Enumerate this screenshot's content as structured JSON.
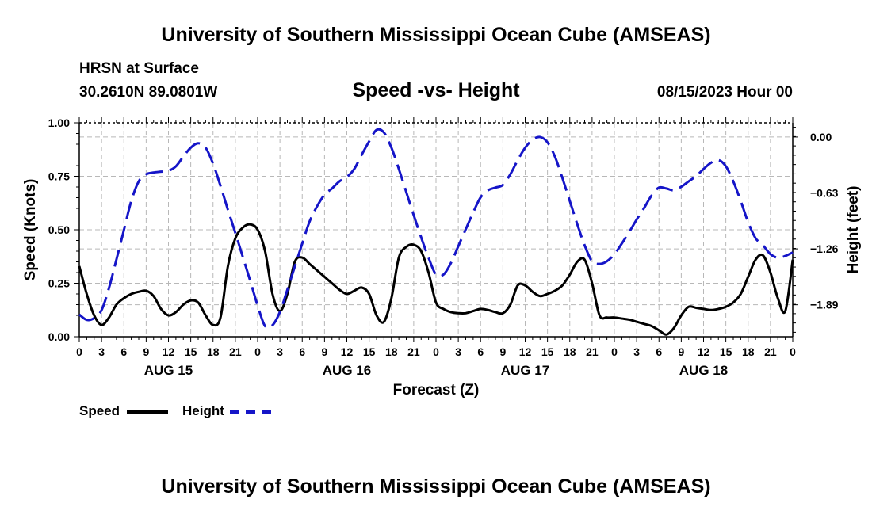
{
  "page": {
    "title_top": "University of Southern Mississippi Ocean Cube (AMSEAS)",
    "title_bottom": "University of Southern Mississippi Ocean Cube (AMSEAS)",
    "station": "HRSN at Surface",
    "coords": "30.2610N  89.0801W",
    "date": "08/15/2023 Hour 00"
  },
  "chart_data": {
    "type": "line",
    "title": "Speed -vs- Height",
    "xlabel": "Forecast (Z)",
    "ylabel": "Speed (Knots)",
    "ylabel_right": "Height (feet)",
    "x_range": [
      0,
      96
    ],
    "ylim": [
      0,
      1.0
    ],
    "ylim_right": [
      -2.25,
      0.16
    ],
    "y_ticks": [
      "0.00",
      "0.25",
      "0.50",
      "0.75",
      "1.00"
    ],
    "y_ticks_right": [
      "0.00",
      "−0.63",
      "−1.26",
      "−1.89"
    ],
    "y_ticks_right_values": [
      0.0,
      -0.63,
      -1.26,
      -1.89
    ],
    "x_tick_labels": [
      "0",
      "3",
      "6",
      "9",
      "12",
      "15",
      "18",
      "21",
      "0",
      "3",
      "6",
      "9",
      "12",
      "15",
      "18",
      "21",
      "0",
      "3",
      "6",
      "9",
      "12",
      "15",
      "18",
      "21",
      "0",
      "3",
      "6",
      "9",
      "12",
      "15",
      "18",
      "21",
      "0"
    ],
    "day_labels": [
      {
        "hour": 12,
        "label": "AUG 15"
      },
      {
        "hour": 36,
        "label": "AUG 16"
      },
      {
        "hour": 60,
        "label": "AUG 17"
      },
      {
        "hour": 84,
        "label": "AUG 18"
      }
    ],
    "grid": true,
    "legend": [
      "Speed",
      "Height"
    ],
    "series": [
      {
        "name": "Speed",
        "axis": "left",
        "color": "#000000",
        "dash": "solid",
        "points": [
          [
            0,
            0.33
          ],
          [
            1,
            0.2
          ],
          [
            2,
            0.1
          ],
          [
            3,
            0.055
          ],
          [
            4,
            0.09
          ],
          [
            5,
            0.15
          ],
          [
            6,
            0.18
          ],
          [
            7,
            0.2
          ],
          [
            8,
            0.21
          ],
          [
            9,
            0.215
          ],
          [
            10,
            0.19
          ],
          [
            11,
            0.13
          ],
          [
            12,
            0.1
          ],
          [
            13,
            0.115
          ],
          [
            14,
            0.15
          ],
          [
            15,
            0.17
          ],
          [
            16,
            0.16
          ],
          [
            17,
            0.1
          ],
          [
            18,
            0.055
          ],
          [
            19,
            0.09
          ],
          [
            20,
            0.33
          ],
          [
            21,
            0.46
          ],
          [
            22,
            0.51
          ],
          [
            23,
            0.525
          ],
          [
            24,
            0.5
          ],
          [
            25,
            0.4
          ],
          [
            26,
            0.2
          ],
          [
            27,
            0.12
          ],
          [
            28,
            0.2
          ],
          [
            29,
            0.35
          ],
          [
            30,
            0.37
          ],
          [
            31,
            0.34
          ],
          [
            32,
            0.31
          ],
          [
            33,
            0.28
          ],
          [
            34,
            0.25
          ],
          [
            35,
            0.22
          ],
          [
            36,
            0.2
          ],
          [
            37,
            0.215
          ],
          [
            38,
            0.23
          ],
          [
            39,
            0.2
          ],
          [
            40,
            0.1
          ],
          [
            41,
            0.07
          ],
          [
            42,
            0.18
          ],
          [
            43,
            0.37
          ],
          [
            44,
            0.42
          ],
          [
            45,
            0.43
          ],
          [
            46,
            0.4
          ],
          [
            47,
            0.3
          ],
          [
            48,
            0.16
          ],
          [
            49,
            0.13
          ],
          [
            50,
            0.115
          ],
          [
            51,
            0.11
          ],
          [
            52,
            0.11
          ],
          [
            53,
            0.12
          ],
          [
            54,
            0.13
          ],
          [
            55,
            0.125
          ],
          [
            56,
            0.115
          ],
          [
            57,
            0.11
          ],
          [
            58,
            0.15
          ],
          [
            59,
            0.24
          ],
          [
            60,
            0.24
          ],
          [
            61,
            0.21
          ],
          [
            62,
            0.19
          ],
          [
            63,
            0.2
          ],
          [
            64,
            0.215
          ],
          [
            65,
            0.24
          ],
          [
            66,
            0.29
          ],
          [
            67,
            0.35
          ],
          [
            68,
            0.36
          ],
          [
            69,
            0.25
          ],
          [
            70,
            0.1
          ],
          [
            71,
            0.09
          ],
          [
            72,
            0.09
          ],
          [
            73,
            0.085
          ],
          [
            74,
            0.08
          ],
          [
            75,
            0.07
          ],
          [
            76,
            0.06
          ],
          [
            77,
            0.05
          ],
          [
            78,
            0.03
          ],
          [
            79,
            0.01
          ],
          [
            80,
            0.04
          ],
          [
            81,
            0.1
          ],
          [
            82,
            0.14
          ],
          [
            83,
            0.135
          ],
          [
            84,
            0.13
          ],
          [
            85,
            0.125
          ],
          [
            86,
            0.13
          ],
          [
            87,
            0.14
          ],
          [
            88,
            0.16
          ],
          [
            89,
            0.2
          ],
          [
            90,
            0.28
          ],
          [
            91,
            0.36
          ],
          [
            92,
            0.38
          ],
          [
            93,
            0.3
          ],
          [
            94,
            0.18
          ],
          [
            95,
            0.12
          ],
          [
            96,
            0.36
          ]
        ]
      },
      {
        "name": "Height",
        "axis": "right",
        "color": "#1515c8",
        "dash": "dashed",
        "points": [
          [
            0,
            -2.0
          ],
          [
            1,
            -2.06
          ],
          [
            2,
            -2.04
          ],
          [
            3,
            -1.95
          ],
          [
            4,
            -1.7
          ],
          [
            5,
            -1.38
          ],
          [
            6,
            -1.05
          ],
          [
            7,
            -0.72
          ],
          [
            8,
            -0.5
          ],
          [
            9,
            -0.42
          ],
          [
            10,
            -0.4
          ],
          [
            11,
            -0.39
          ],
          [
            12,
            -0.38
          ],
          [
            13,
            -0.33
          ],
          [
            14,
            -0.22
          ],
          [
            15,
            -0.12
          ],
          [
            16,
            -0.07
          ],
          [
            17,
            -0.12
          ],
          [
            18,
            -0.3
          ],
          [
            19,
            -0.55
          ],
          [
            20,
            -0.82
          ],
          [
            21,
            -1.08
          ],
          [
            22,
            -1.35
          ],
          [
            23,
            -1.62
          ],
          [
            24,
            -1.9
          ],
          [
            25,
            -2.13
          ],
          [
            26,
            -2.12
          ],
          [
            27,
            -1.97
          ],
          [
            28,
            -1.72
          ],
          [
            29,
            -1.46
          ],
          [
            30,
            -1.2
          ],
          [
            31,
            -0.95
          ],
          [
            32,
            -0.78
          ],
          [
            33,
            -0.65
          ],
          [
            34,
            -0.58
          ],
          [
            35,
            -0.5
          ],
          [
            36,
            -0.45
          ],
          [
            37,
            -0.36
          ],
          [
            38,
            -0.2
          ],
          [
            39,
            -0.05
          ],
          [
            40,
            0.08
          ],
          [
            41,
            0.05
          ],
          [
            42,
            -0.12
          ],
          [
            43,
            -0.36
          ],
          [
            44,
            -0.62
          ],
          [
            45,
            -0.88
          ],
          [
            46,
            -1.13
          ],
          [
            47,
            -1.36
          ],
          [
            48,
            -1.55
          ],
          [
            49,
            -1.55
          ],
          [
            50,
            -1.42
          ],
          [
            51,
            -1.23
          ],
          [
            52,
            -1.04
          ],
          [
            53,
            -0.85
          ],
          [
            54,
            -0.68
          ],
          [
            55,
            -0.6
          ],
          [
            56,
            -0.57
          ],
          [
            57,
            -0.54
          ],
          [
            58,
            -0.42
          ],
          [
            59,
            -0.26
          ],
          [
            60,
            -0.12
          ],
          [
            61,
            -0.03
          ],
          [
            62,
            0.0
          ],
          [
            63,
            -0.06
          ],
          [
            64,
            -0.22
          ],
          [
            65,
            -0.46
          ],
          [
            66,
            -0.72
          ],
          [
            67,
            -0.98
          ],
          [
            68,
            -1.22
          ],
          [
            69,
            -1.4
          ],
          [
            70,
            -1.43
          ],
          [
            71,
            -1.4
          ],
          [
            72,
            -1.32
          ],
          [
            73,
            -1.2
          ],
          [
            74,
            -1.07
          ],
          [
            75,
            -0.93
          ],
          [
            76,
            -0.8
          ],
          [
            77,
            -0.66
          ],
          [
            78,
            -0.57
          ],
          [
            79,
            -0.58
          ],
          [
            80,
            -0.6
          ],
          [
            81,
            -0.56
          ],
          [
            82,
            -0.5
          ],
          [
            83,
            -0.44
          ],
          [
            84,
            -0.36
          ],
          [
            85,
            -0.29
          ],
          [
            86,
            -0.26
          ],
          [
            87,
            -0.33
          ],
          [
            88,
            -0.5
          ],
          [
            89,
            -0.72
          ],
          [
            90,
            -0.96
          ],
          [
            91,
            -1.14
          ],
          [
            92,
            -1.22
          ],
          [
            93,
            -1.32
          ],
          [
            94,
            -1.36
          ],
          [
            95,
            -1.34
          ],
          [
            96,
            -1.3
          ]
        ]
      }
    ]
  }
}
